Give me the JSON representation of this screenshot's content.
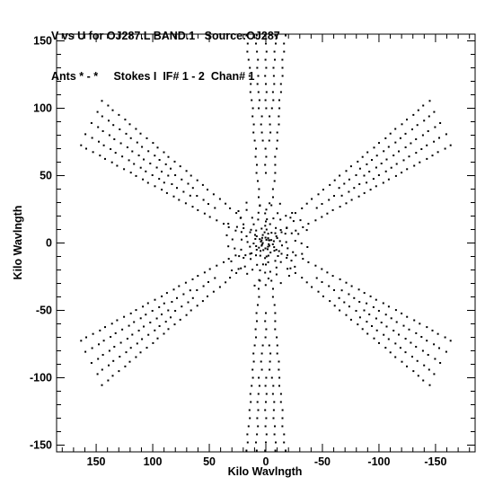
{
  "header": {
    "line1": "V vs U for OJ287.L BAND.1   Source:OJ287",
    "line2": "Ants * - *     Stokes I  IF# 1 - 2  Chan# 1"
  },
  "chart_data": {
    "type": "scatter",
    "title": "V vs U for OJ287.L BAND.1   Source:OJ287",
    "subtitle": "Ants * - *     Stokes I  IF# 1 - 2  Chan# 1",
    "xlabel": "Kilo Wavlngth",
    "ylabel": "Kilo Wavlngth",
    "xlim": [
      185,
      -185
    ],
    "ylim": [
      -155,
      155
    ],
    "x_reversed": true,
    "x_ticks": [
      150,
      100,
      50,
      0,
      -50,
      -100,
      -150
    ],
    "y_ticks": [
      150,
      100,
      50,
      0,
      -50,
      -100,
      -150
    ],
    "grid": false,
    "marker_color": "#000000",
    "description_of_coverage": "six-armed star uv coverage symmetric under (u,v)->(-u,-v)",
    "arms": [
      {
        "name": "",
        "u_range": [
          -95,
          95
        ],
        "v_range": [
          -165,
          165
        ]
      },
      {
        "name": "",
        "u_range": [
          -175,
          175
        ],
        "v_range": [
          -80,
          80
        ]
      },
      {
        "name": "",
        "u_range": [
          -175,
          175
        ],
        "v_range": [
          80,
          -80
        ]
      }
    ]
  }
}
